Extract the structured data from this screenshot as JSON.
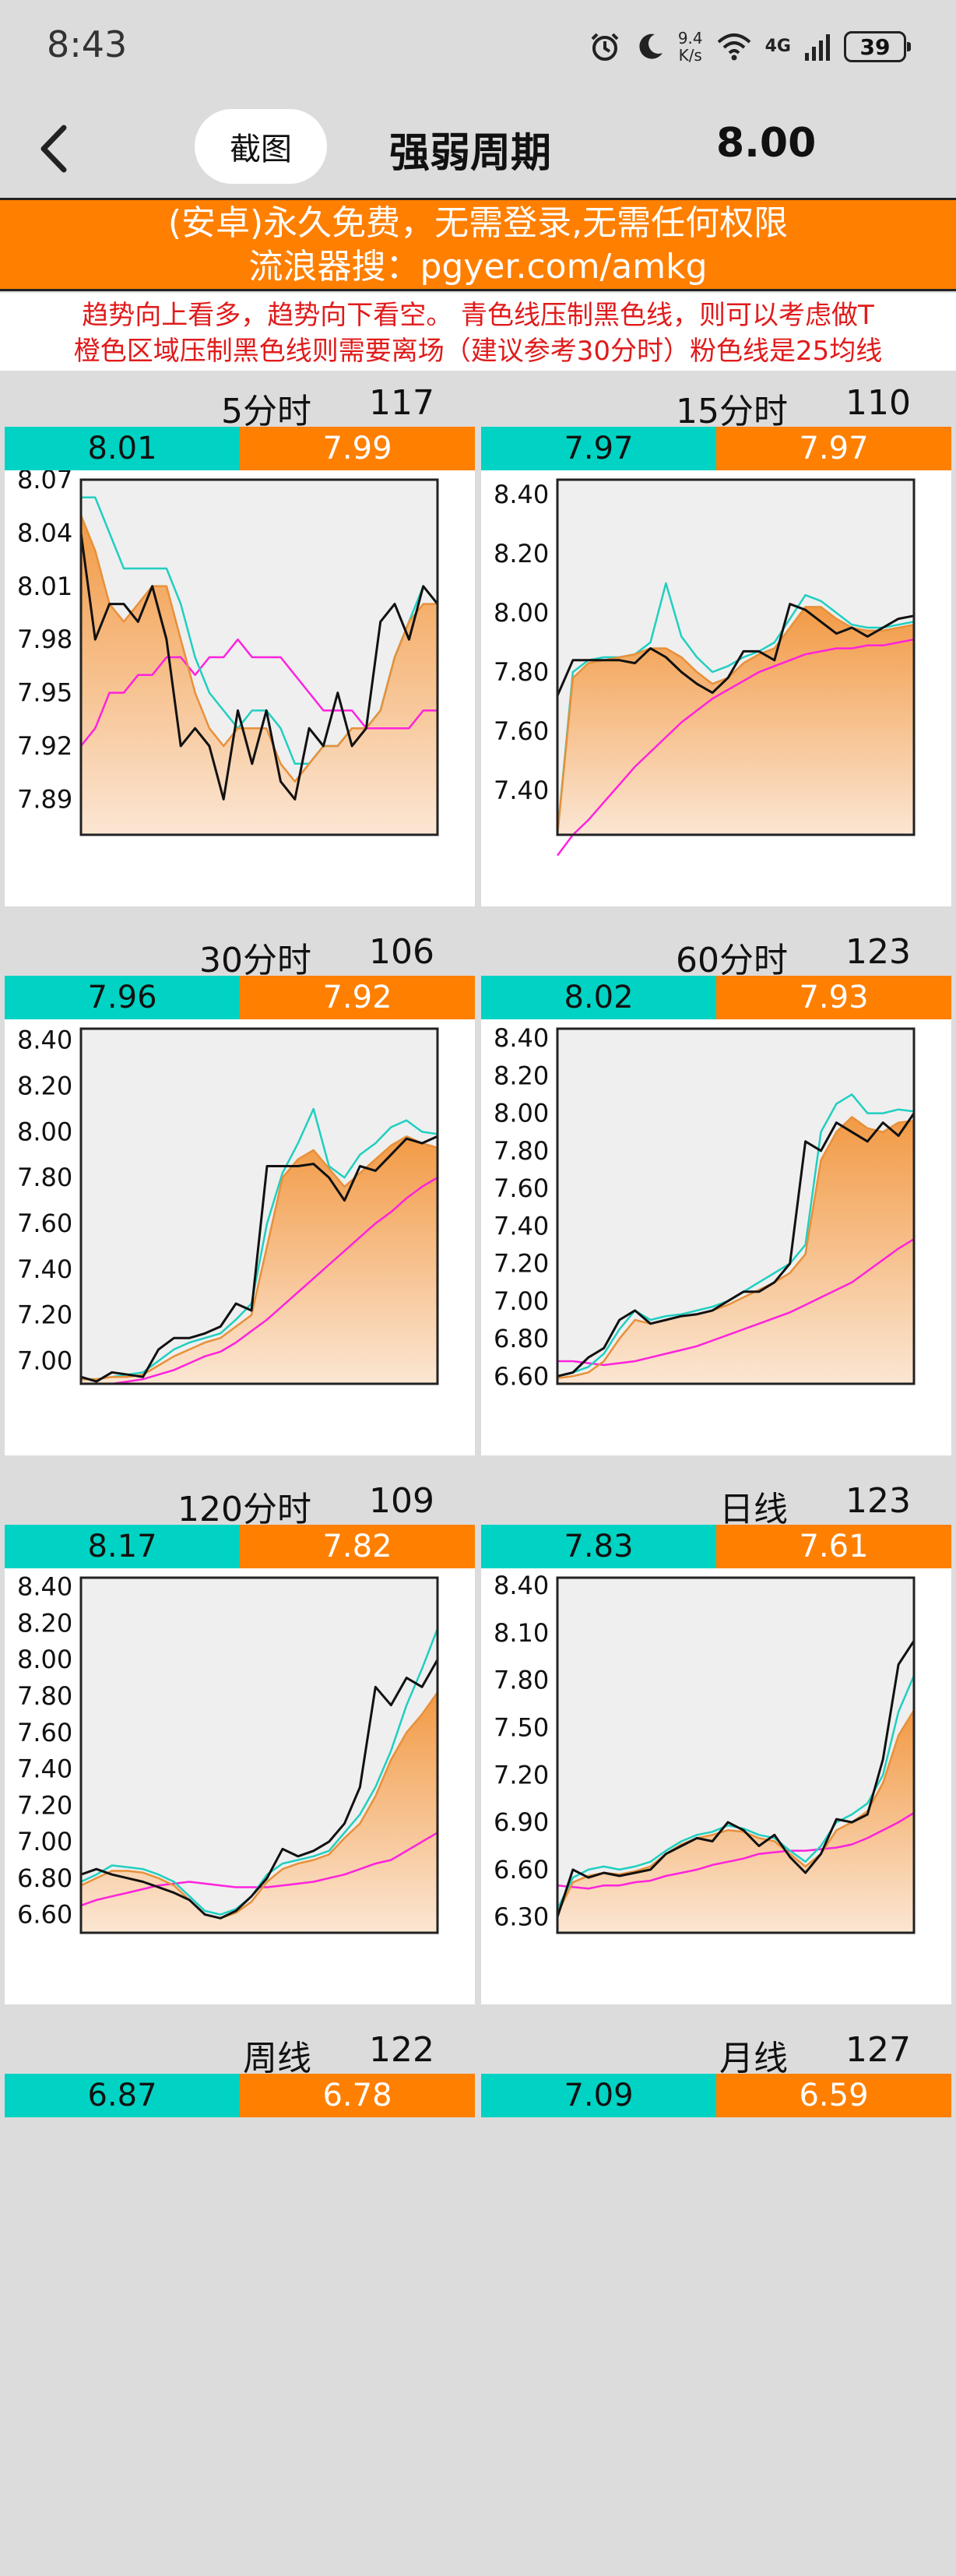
{
  "status_bar": {
    "time": "8:43",
    "net_speed_value": "9.4",
    "net_speed_unit": "K/s",
    "network_type": "4G",
    "battery": "39",
    "icons": [
      "alarm-icon",
      "moon-icon",
      "wifi-icon",
      "signal-icon",
      "battery-icon"
    ]
  },
  "header": {
    "back_icon": "chevron-left-icon",
    "screenshot_label": "截图",
    "title": "强弱周期",
    "price": "8.00"
  },
  "banner": {
    "line1": "(安卓)永久免费，无需登录,无需任何权限",
    "line2": "流浪器搜：pgyer.com/amkg"
  },
  "notice": {
    "line1": "趋势向上看多，趋势向下看空。 青色线压制黑色线，则可以考虑做T",
    "line2": "橙色区域压制黑色线则需要离场（建议参考30分时）粉色线是25均线"
  },
  "colors": {
    "cyan": "#00d3c3",
    "orange": "#ff7f00",
    "black_line": "#111111",
    "pink_line": "#ff22dd",
    "notice_red": "#e01b1b"
  },
  "panels": [
    {
      "name": "5分时",
      "count": "117",
      "cyan_value": "8.01",
      "orange_value": "7.99"
    },
    {
      "name": "15分时",
      "count": "110",
      "cyan_value": "7.97",
      "orange_value": "7.97"
    },
    {
      "name": "30分时",
      "count": "106",
      "cyan_value": "7.96",
      "orange_value": "7.92"
    },
    {
      "name": "60分时",
      "count": "123",
      "cyan_value": "8.02",
      "orange_value": "7.93"
    },
    {
      "name": "120分时",
      "count": "109",
      "cyan_value": "8.17",
      "orange_value": "7.82"
    },
    {
      "name": "日线",
      "count": "123",
      "cyan_value": "7.83",
      "orange_value": "7.61"
    },
    {
      "name": "周线",
      "count": "122",
      "cyan_value": "6.87",
      "orange_value": "6.78"
    },
    {
      "name": "月线",
      "count": "127",
      "cyan_value": "7.09",
      "orange_value": "6.59"
    }
  ],
  "chart_data": [
    {
      "type": "line",
      "panel": "5分时",
      "y_ticks": [
        "8.07",
        "8.04",
        "8.01",
        "7.98",
        "7.95",
        "7.92",
        "7.89"
      ],
      "ylim": [
        7.87,
        8.07
      ],
      "series": [
        {
          "values": [
            8.04,
            7.98,
            8.0,
            8.0,
            7.99,
            8.01,
            7.98,
            7.92,
            7.93,
            7.92,
            7.89,
            7.94,
            7.91,
            7.94,
            7.9,
            7.89,
            7.93,
            7.92,
            7.95,
            7.92,
            7.93,
            7.99,
            8.0,
            7.98,
            8.01,
            8.0
          ]
        },
        {
          "values": [
            8.06,
            8.06,
            8.04,
            8.02,
            8.02,
            8.02,
            8.02,
            8.0,
            7.97,
            7.95,
            7.94,
            7.93,
            7.94,
            7.94,
            7.93,
            7.91,
            7.91,
            7.92,
            7.92,
            7.93,
            7.93,
            7.94,
            7.97,
            7.99,
            8.01,
            8.0
          ]
        },
        {
          "values": [
            8.05,
            8.03,
            8.0,
            7.99,
            8.0,
            8.01,
            8.01,
            7.98,
            7.95,
            7.93,
            7.92,
            7.93,
            7.93,
            7.93,
            7.91,
            7.9,
            7.91,
            7.92,
            7.92,
            7.93,
            7.93,
            7.94,
            7.97,
            7.99,
            8.0,
            8.0
          ]
        },
        {
          "values": [
            7.92,
            7.93,
            7.95,
            7.95,
            7.96,
            7.96,
            7.97,
            7.97,
            7.96,
            7.97,
            7.97,
            7.98,
            7.97,
            7.97,
            7.97,
            7.96,
            7.95,
            7.94,
            7.94,
            7.94,
            7.93,
            7.93,
            7.93,
            7.93,
            7.94,
            7.94
          ]
        }
      ]
    },
    {
      "type": "line",
      "panel": "15分时",
      "y_ticks": [
        "8.40",
        "8.20",
        "8.00",
        "7.80",
        "7.60",
        "7.40"
      ],
      "ylim": [
        7.25,
        8.45
      ],
      "series": [
        {
          "values": [
            7.72,
            7.84,
            7.84,
            7.84,
            7.84,
            7.83,
            7.88,
            7.85,
            7.8,
            7.76,
            7.73,
            7.78,
            7.87,
            7.87,
            7.84,
            8.03,
            8.01,
            7.97,
            7.93,
            7.95,
            7.92,
            7.95,
            7.98,
            7.99
          ]
        },
        {
          "values": [
            7.25,
            7.8,
            7.84,
            7.85,
            7.85,
            7.86,
            7.9,
            8.1,
            7.92,
            7.85,
            7.8,
            7.82,
            7.85,
            7.87,
            7.9,
            7.98,
            8.06,
            8.04,
            8.0,
            7.96,
            7.95,
            7.95,
            7.96,
            7.97
          ]
        },
        {
          "values": [
            7.25,
            7.78,
            7.83,
            7.84,
            7.85,
            7.86,
            7.88,
            7.88,
            7.85,
            7.8,
            7.76,
            7.78,
            7.83,
            7.86,
            7.88,
            7.95,
            8.02,
            8.02,
            7.98,
            7.95,
            7.94,
            7.94,
            7.95,
            7.96
          ]
        },
        {
          "values": [
            7.18,
            7.25,
            7.3,
            7.36,
            7.42,
            7.48,
            7.53,
            7.58,
            7.63,
            7.67,
            7.71,
            7.74,
            7.77,
            7.8,
            7.82,
            7.84,
            7.86,
            7.87,
            7.88,
            7.88,
            7.89,
            7.89,
            7.9,
            7.91
          ]
        }
      ]
    },
    {
      "type": "line",
      "panel": "30分时",
      "y_ticks": [
        "8.40",
        "8.20",
        "8.00",
        "7.80",
        "7.60",
        "7.40",
        "7.20",
        "7.00"
      ],
      "ylim": [
        6.9,
        8.45
      ],
      "series": [
        {
          "values": [
            6.93,
            6.91,
            6.95,
            6.94,
            6.93,
            7.05,
            7.1,
            7.1,
            7.12,
            7.15,
            7.25,
            7.22,
            7.85,
            7.85,
            7.85,
            7.86,
            7.8,
            7.7,
            7.85,
            7.83,
            7.9,
            7.97,
            7.95,
            7.98
          ]
        },
        {
          "values": [
            6.92,
            6.92,
            6.93,
            6.94,
            6.95,
            7.0,
            7.05,
            7.08,
            7.1,
            7.12,
            7.18,
            7.25,
            7.6,
            7.82,
            7.95,
            8.1,
            7.85,
            7.8,
            7.9,
            7.95,
            8.02,
            8.05,
            8.0,
            7.99
          ]
        },
        {
          "values": [
            6.92,
            6.92,
            6.93,
            6.93,
            6.94,
            6.98,
            7.02,
            7.05,
            7.08,
            7.1,
            7.15,
            7.2,
            7.5,
            7.8,
            7.88,
            7.92,
            7.84,
            7.76,
            7.82,
            7.88,
            7.94,
            7.98,
            7.95,
            7.93
          ]
        },
        {
          "values": [
            6.9,
            6.9,
            6.9,
            6.91,
            6.92,
            6.94,
            6.96,
            6.99,
            7.02,
            7.04,
            7.08,
            7.13,
            7.18,
            7.24,
            7.3,
            7.36,
            7.42,
            7.48,
            7.54,
            7.6,
            7.65,
            7.71,
            7.76,
            7.8
          ]
        }
      ]
    },
    {
      "type": "line",
      "panel": "60分时",
      "y_ticks": [
        "8.40",
        "8.20",
        "8.00",
        "7.80",
        "7.60",
        "7.40",
        "7.20",
        "7.00",
        "6.80",
        "6.60"
      ],
      "ylim": [
        6.56,
        8.45
      ],
      "series": [
        {
          "values": [
            6.6,
            6.62,
            6.7,
            6.75,
            6.9,
            6.95,
            6.88,
            6.9,
            6.92,
            6.93,
            6.95,
            7.0,
            7.05,
            7.05,
            7.1,
            7.2,
            7.85,
            7.8,
            7.95,
            7.9,
            7.85,
            7.95,
            7.88,
            8.0
          ]
        },
        {
          "values": [
            6.6,
            6.62,
            6.65,
            6.72,
            6.85,
            6.95,
            6.9,
            6.92,
            6.93,
            6.95,
            6.97,
            7.0,
            7.05,
            7.1,
            7.15,
            7.2,
            7.3,
            7.9,
            8.05,
            8.1,
            8.0,
            8.0,
            8.02,
            8.01
          ]
        },
        {
          "values": [
            6.59,
            6.6,
            6.62,
            6.68,
            6.8,
            6.9,
            6.88,
            6.9,
            6.92,
            6.93,
            6.95,
            6.98,
            7.02,
            7.06,
            7.1,
            7.15,
            7.25,
            7.75,
            7.9,
            7.98,
            7.92,
            7.9,
            7.95,
            7.96
          ]
        },
        {
          "values": [
            6.68,
            6.68,
            6.67,
            6.66,
            6.67,
            6.68,
            6.7,
            6.72,
            6.74,
            6.76,
            6.79,
            6.82,
            6.85,
            6.88,
            6.91,
            6.94,
            6.98,
            7.02,
            7.06,
            7.1,
            7.16,
            7.22,
            7.28,
            7.33
          ]
        }
      ]
    },
    {
      "type": "line",
      "panel": "120分时",
      "y_ticks": [
        "8.40",
        "8.20",
        "8.00",
        "7.80",
        "7.60",
        "7.40",
        "7.20",
        "7.00",
        "6.80",
        "6.60"
      ],
      "ylim": [
        6.5,
        8.45
      ],
      "series": [
        {
          "values": [
            6.82,
            6.85,
            6.82,
            6.8,
            6.78,
            6.75,
            6.72,
            6.68,
            6.6,
            6.58,
            6.62,
            6.7,
            6.8,
            6.96,
            6.92,
            6.95,
            7.0,
            7.1,
            7.3,
            7.85,
            7.75,
            7.9,
            7.85,
            8.0
          ]
        },
        {
          "values": [
            6.78,
            6.82,
            6.87,
            6.86,
            6.85,
            6.82,
            6.78,
            6.7,
            6.62,
            6.6,
            6.63,
            6.7,
            6.82,
            6.88,
            6.9,
            6.92,
            6.95,
            7.05,
            7.15,
            7.3,
            7.5,
            7.75,
            7.95,
            8.17
          ]
        },
        {
          "values": [
            6.76,
            6.8,
            6.84,
            6.84,
            6.83,
            6.8,
            6.76,
            6.68,
            6.6,
            6.58,
            6.61,
            6.67,
            6.78,
            6.85,
            6.88,
            6.9,
            6.93,
            7.02,
            7.1,
            7.25,
            7.45,
            7.6,
            7.7,
            7.82
          ]
        },
        {
          "values": [
            6.65,
            6.68,
            6.7,
            6.72,
            6.74,
            6.76,
            6.77,
            6.78,
            6.77,
            6.76,
            6.75,
            6.75,
            6.75,
            6.76,
            6.77,
            6.78,
            6.8,
            6.82,
            6.85,
            6.88,
            6.9,
            6.95,
            7.0,
            7.05
          ]
        }
      ]
    },
    {
      "type": "line",
      "panel": "日线",
      "y_ticks": [
        "8.40",
        "8.10",
        "7.80",
        "7.50",
        "7.20",
        "6.90",
        "6.60",
        "6.30"
      ],
      "ylim": [
        6.2,
        8.45
      ],
      "series": [
        {
          "values": [
            6.3,
            6.6,
            6.55,
            6.58,
            6.56,
            6.58,
            6.6,
            6.7,
            6.75,
            6.8,
            6.78,
            6.9,
            6.85,
            6.75,
            6.82,
            6.68,
            6.58,
            6.7,
            6.92,
            6.9,
            6.95,
            7.3,
            7.9,
            8.05
          ]
        },
        {
          "values": [
            6.35,
            6.55,
            6.6,
            6.62,
            6.6,
            6.62,
            6.65,
            6.72,
            6.78,
            6.82,
            6.84,
            6.88,
            6.86,
            6.82,
            6.8,
            6.72,
            6.65,
            6.75,
            6.9,
            6.95,
            7.02,
            7.2,
            7.6,
            7.83
          ]
        },
        {
          "values": [
            6.32,
            6.52,
            6.56,
            6.58,
            6.57,
            6.59,
            6.62,
            6.7,
            6.76,
            6.8,
            6.82,
            6.85,
            6.84,
            6.8,
            6.78,
            6.7,
            6.62,
            6.7,
            6.85,
            6.9,
            6.97,
            7.15,
            7.45,
            7.61
          ]
        },
        {
          "values": [
            6.5,
            6.49,
            6.48,
            6.5,
            6.5,
            6.52,
            6.53,
            6.56,
            6.58,
            6.6,
            6.63,
            6.65,
            6.67,
            6.7,
            6.71,
            6.72,
            6.72,
            6.73,
            6.74,
            6.76,
            6.8,
            6.85,
            6.9,
            6.96
          ]
        }
      ]
    }
  ]
}
